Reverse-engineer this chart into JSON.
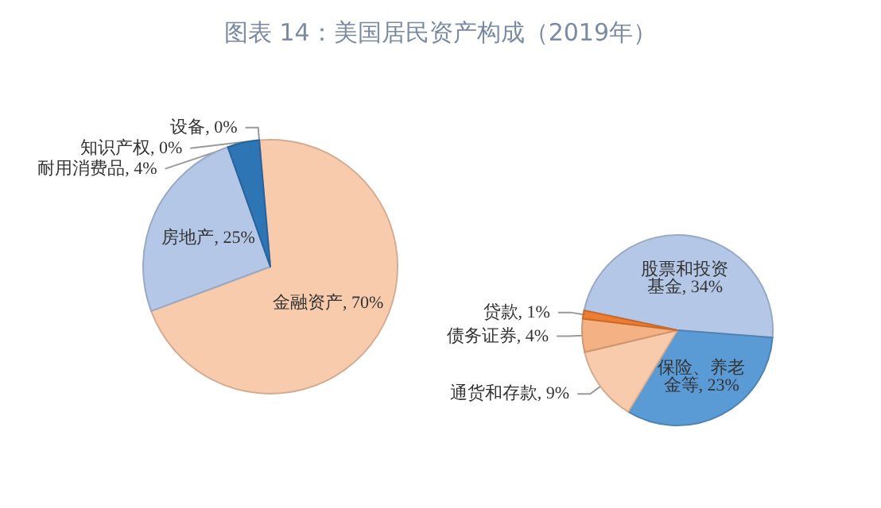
{
  "chart_data": [
    {
      "type": "pie",
      "title": "图表 14：美国居民资产构成（2019年）",
      "categories": [
        "金融资产",
        "房地产",
        "耐用消费品",
        "设备",
        "知识产权"
      ],
      "values": [
        70,
        25,
        4,
        0,
        0
      ],
      "value_labels": [
        "70%",
        "25%",
        "4%",
        "0%",
        "0%"
      ],
      "colors": [
        "#f8cbad",
        "#b4c7e7",
        "#2e75b6",
        "#a5a5a5",
        "#ffc000"
      ],
      "data_labels": true
    },
    {
      "type": "pie",
      "categories": [
        "股票和投资基金",
        "保险、养老金等",
        "通货和存款",
        "债务证券",
        "贷款"
      ],
      "values": [
        34,
        23,
        9,
        4,
        1
      ],
      "value_labels": [
        "34%",
        "23%",
        "9%",
        "4%",
        "1%"
      ],
      "colors": [
        "#b4c7e7",
        "#5b9bd5",
        "#f8cbad",
        "#f4b183",
        "#ed7d31"
      ],
      "data_labels": true
    }
  ]
}
